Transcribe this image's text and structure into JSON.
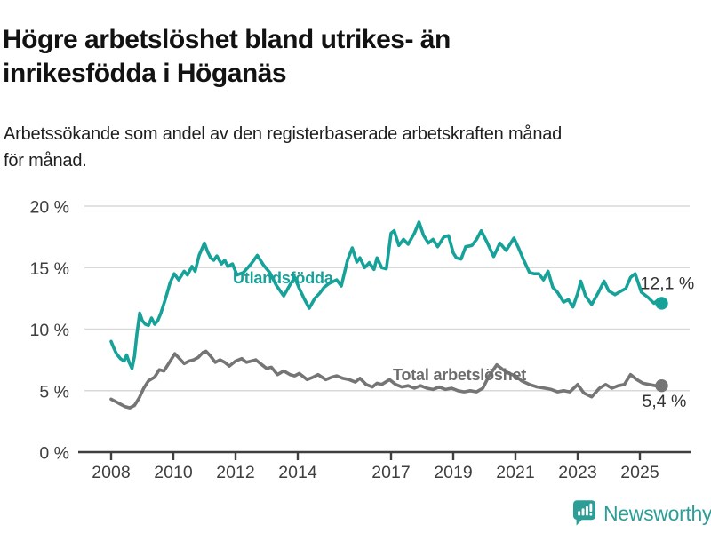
{
  "page": {
    "title_lines": [
      "Högre arbetslöshet bland utrikes- än",
      "inrikesfödda i Höganäs"
    ],
    "subtitle_lines": [
      "Arbetssökande som andel av den registerbaserade arbetskraften månad",
      "för månad."
    ],
    "brand": "Newsworthy"
  },
  "colors": {
    "accent_teal": "#17a299",
    "line_gray": "#757575",
    "grid": "#d9d9d9",
    "axis": "#3f3f3f",
    "text_dark": "#333333",
    "logo_teal": "#2d9e97"
  },
  "chart_data": {
    "type": "line",
    "title": "Högre arbetslöshet bland utrikes- än inrikesfödda i Höganäs",
    "subtitle": "Arbetssökande som andel av den registerbaserade arbetskraften månad för månad.",
    "grid": "horizontal",
    "legend_position": "inline-labels",
    "x_axis": {
      "range": [
        2007.6,
        2026.3
      ],
      "ticks": [
        {
          "value": 2008,
          "label": "2008"
        },
        {
          "value": 2010,
          "label": "2010"
        },
        {
          "value": 2012,
          "label": "2012"
        },
        {
          "value": 2014,
          "label": "2014"
        },
        {
          "value": 2017,
          "label": "2017"
        },
        {
          "value": 2019,
          "label": "2019"
        },
        {
          "value": 2021,
          "label": "2021"
        },
        {
          "value": 2023,
          "label": "2023"
        },
        {
          "value": 2025,
          "label": "2025"
        }
      ]
    },
    "y_axis": {
      "range": [
        0,
        20
      ],
      "ticks": [
        {
          "value": 0,
          "label": "0 %"
        },
        {
          "value": 5,
          "label": "5 %"
        },
        {
          "value": 10,
          "label": "10 %"
        },
        {
          "value": 15,
          "label": "15 %"
        },
        {
          "value": 20,
          "label": "20 %"
        }
      ]
    },
    "series": [
      {
        "name": "Utlandsfödda",
        "color": "#17a299",
        "end_value_label": "12,1 %",
        "points": [
          [
            2008,
            9
          ],
          [
            2008.08,
            8.5
          ],
          [
            2008.17,
            8
          ],
          [
            2008.3,
            7.6
          ],
          [
            2008.42,
            7.4
          ],
          [
            2008.5,
            7.9
          ],
          [
            2008.58,
            7.3
          ],
          [
            2008.67,
            6.8
          ],
          [
            2008.75,
            7.8
          ],
          [
            2008.83,
            9.6
          ],
          [
            2008.92,
            11.3
          ],
          [
            2009,
            10.7
          ],
          [
            2009.1,
            10.4
          ],
          [
            2009.2,
            10.3
          ],
          [
            2009.3,
            10.9
          ],
          [
            2009.4,
            10.4
          ],
          [
            2009.5,
            10.7
          ],
          [
            2009.6,
            11.3
          ],
          [
            2009.75,
            12.5
          ],
          [
            2009.9,
            13.8
          ],
          [
            2010.03,
            14.5
          ],
          [
            2010.17,
            14
          ],
          [
            2010.35,
            14.7
          ],
          [
            2010.45,
            14.4
          ],
          [
            2010.6,
            15.1
          ],
          [
            2010.7,
            14.7
          ],
          [
            2010.83,
            16
          ],
          [
            2011,
            17
          ],
          [
            2011.1,
            16.3
          ],
          [
            2011.2,
            15.8
          ],
          [
            2011.3,
            15.6
          ],
          [
            2011.4,
            15.95
          ],
          [
            2011.55,
            15.3
          ],
          [
            2011.65,
            15.6
          ],
          [
            2011.75,
            15.1
          ],
          [
            2011.9,
            15.3
          ],
          [
            2012.05,
            14.4
          ],
          [
            2012.25,
            14.6
          ],
          [
            2012.5,
            15.3
          ],
          [
            2012.7,
            16
          ],
          [
            2012.9,
            15.2
          ],
          [
            2013.1,
            14.6
          ],
          [
            2013.3,
            13.6
          ],
          [
            2013.55,
            12.7
          ],
          [
            2013.75,
            13.6
          ],
          [
            2013.9,
            14.2
          ],
          [
            2014.05,
            13.3
          ],
          [
            2014.2,
            12.5
          ],
          [
            2014.37,
            11.7
          ],
          [
            2014.55,
            12.5
          ],
          [
            2014.7,
            12.9
          ],
          [
            2014.85,
            13.4
          ],
          [
            2015,
            13.7
          ],
          [
            2015.25,
            14
          ],
          [
            2015.4,
            13.5
          ],
          [
            2015.6,
            15.6
          ],
          [
            2015.75,
            16.6
          ],
          [
            2015.9,
            15.45
          ],
          [
            2016,
            15.8
          ],
          [
            2016.15,
            15
          ],
          [
            2016.3,
            15.4
          ],
          [
            2016.45,
            14.85
          ],
          [
            2016.55,
            15.8
          ],
          [
            2016.7,
            15
          ],
          [
            2016.85,
            14.9
          ],
          [
            2017,
            17.8
          ],
          [
            2017.1,
            18
          ],
          [
            2017.25,
            16.8
          ],
          [
            2017.4,
            17.3
          ],
          [
            2017.55,
            16.9
          ],
          [
            2017.75,
            17.8
          ],
          [
            2017.9,
            18.7
          ],
          [
            2018.05,
            17.6
          ],
          [
            2018.2,
            17
          ],
          [
            2018.35,
            17.3
          ],
          [
            2018.5,
            16.7
          ],
          [
            2018.7,
            17.5
          ],
          [
            2018.85,
            17.6
          ],
          [
            2019,
            16.2
          ],
          [
            2019.1,
            15.8
          ],
          [
            2019.25,
            15.7
          ],
          [
            2019.4,
            16.7
          ],
          [
            2019.6,
            16.8
          ],
          [
            2019.75,
            17.3
          ],
          [
            2019.9,
            18
          ],
          [
            2020.1,
            17
          ],
          [
            2020.3,
            15.9
          ],
          [
            2020.5,
            17
          ],
          [
            2020.7,
            16.4
          ],
          [
            2020.95,
            17.4
          ],
          [
            2021.1,
            16.6
          ],
          [
            2021.25,
            15.7
          ],
          [
            2021.45,
            14.6
          ],
          [
            2021.6,
            14.5
          ],
          [
            2021.75,
            14.5
          ],
          [
            2021.9,
            14
          ],
          [
            2022.05,
            14.7
          ],
          [
            2022.2,
            13.4
          ],
          [
            2022.35,
            13
          ],
          [
            2022.55,
            12.2
          ],
          [
            2022.7,
            12.4
          ],
          [
            2022.85,
            11.8
          ],
          [
            2023,
            12.9
          ],
          [
            2023.1,
            13.9
          ],
          [
            2023.25,
            12.7
          ],
          [
            2023.45,
            12
          ],
          [
            2023.65,
            12.9
          ],
          [
            2023.85,
            13.9
          ],
          [
            2024,
            13.1
          ],
          [
            2024.2,
            12.8
          ],
          [
            2024.4,
            13.1
          ],
          [
            2024.55,
            13.3
          ],
          [
            2024.7,
            14.2
          ],
          [
            2024.85,
            14.5
          ],
          [
            2025.05,
            13
          ],
          [
            2025.25,
            12.6
          ],
          [
            2025.45,
            12.1
          ],
          [
            2025.6,
            12.4
          ],
          [
            2025.7,
            12.1
          ]
        ]
      },
      {
        "name": "Total arbetslöshet",
        "color": "#757575",
        "end_value_label": "5,4 %",
        "points": [
          [
            2008,
            4.3
          ],
          [
            2008.15,
            4.1
          ],
          [
            2008.3,
            3.9
          ],
          [
            2008.45,
            3.7
          ],
          [
            2008.6,
            3.6
          ],
          [
            2008.75,
            3.8
          ],
          [
            2008.9,
            4.4
          ],
          [
            2009.05,
            5.2
          ],
          [
            2009.2,
            5.8
          ],
          [
            2009.4,
            6.1
          ],
          [
            2009.55,
            6.7
          ],
          [
            2009.7,
            6.6
          ],
          [
            2009.85,
            7.2
          ],
          [
            2010.05,
            8
          ],
          [
            2010.2,
            7.6
          ],
          [
            2010.35,
            7.2
          ],
          [
            2010.5,
            7.4
          ],
          [
            2010.65,
            7.5
          ],
          [
            2010.8,
            7.7
          ],
          [
            2010.95,
            8.1
          ],
          [
            2011.05,
            8.2
          ],
          [
            2011.2,
            7.8
          ],
          [
            2011.35,
            7.3
          ],
          [
            2011.5,
            7.5
          ],
          [
            2011.65,
            7.3
          ],
          [
            2011.8,
            7
          ],
          [
            2012,
            7.4
          ],
          [
            2012.2,
            7.6
          ],
          [
            2012.35,
            7.3
          ],
          [
            2012.5,
            7.4
          ],
          [
            2012.65,
            7.5
          ],
          [
            2012.8,
            7.2
          ],
          [
            2013,
            6.8
          ],
          [
            2013.15,
            6.9
          ],
          [
            2013.35,
            6.3
          ],
          [
            2013.55,
            6.6
          ],
          [
            2013.75,
            6.3
          ],
          [
            2013.9,
            6.2
          ],
          [
            2014.05,
            6.4
          ],
          [
            2014.3,
            5.9
          ],
          [
            2014.5,
            6.1
          ],
          [
            2014.65,
            6.3
          ],
          [
            2014.9,
            5.9
          ],
          [
            2015.1,
            6.1
          ],
          [
            2015.25,
            6.2
          ],
          [
            2015.45,
            6
          ],
          [
            2015.65,
            5.9
          ],
          [
            2015.85,
            5.7
          ],
          [
            2016,
            6
          ],
          [
            2016.2,
            5.5
          ],
          [
            2016.4,
            5.3
          ],
          [
            2016.55,
            5.6
          ],
          [
            2016.7,
            5.5
          ],
          [
            2016.95,
            5.9
          ],
          [
            2017.15,
            5.5
          ],
          [
            2017.35,
            5.3
          ],
          [
            2017.55,
            5.4
          ],
          [
            2017.75,
            5.2
          ],
          [
            2017.95,
            5.4
          ],
          [
            2018.15,
            5.2
          ],
          [
            2018.35,
            5.1
          ],
          [
            2018.55,
            5.3
          ],
          [
            2018.75,
            5.1
          ],
          [
            2018.95,
            5.2
          ],
          [
            2019.15,
            5
          ],
          [
            2019.35,
            4.9
          ],
          [
            2019.55,
            5
          ],
          [
            2019.75,
            4.9
          ],
          [
            2019.95,
            5.2
          ],
          [
            2020.15,
            6.2
          ],
          [
            2020.4,
            7.1
          ],
          [
            2020.6,
            6.7
          ],
          [
            2020.8,
            6.4
          ],
          [
            2021,
            6.2
          ],
          [
            2021.2,
            5.8
          ],
          [
            2021.45,
            5.5
          ],
          [
            2021.7,
            5.3
          ],
          [
            2021.95,
            5.2
          ],
          [
            2022.15,
            5.1
          ],
          [
            2022.35,
            4.9
          ],
          [
            2022.55,
            5
          ],
          [
            2022.75,
            4.9
          ],
          [
            2023,
            5.5
          ],
          [
            2023.2,
            4.8
          ],
          [
            2023.45,
            4.5
          ],
          [
            2023.7,
            5.2
          ],
          [
            2023.9,
            5.5
          ],
          [
            2024.1,
            5.2
          ],
          [
            2024.3,
            5.4
          ],
          [
            2024.5,
            5.5
          ],
          [
            2024.7,
            6.3
          ],
          [
            2024.9,
            5.9
          ],
          [
            2025.1,
            5.6
          ],
          [
            2025.3,
            5.5
          ],
          [
            2025.5,
            5.4
          ],
          [
            2025.7,
            5.4
          ]
        ]
      }
    ]
  }
}
